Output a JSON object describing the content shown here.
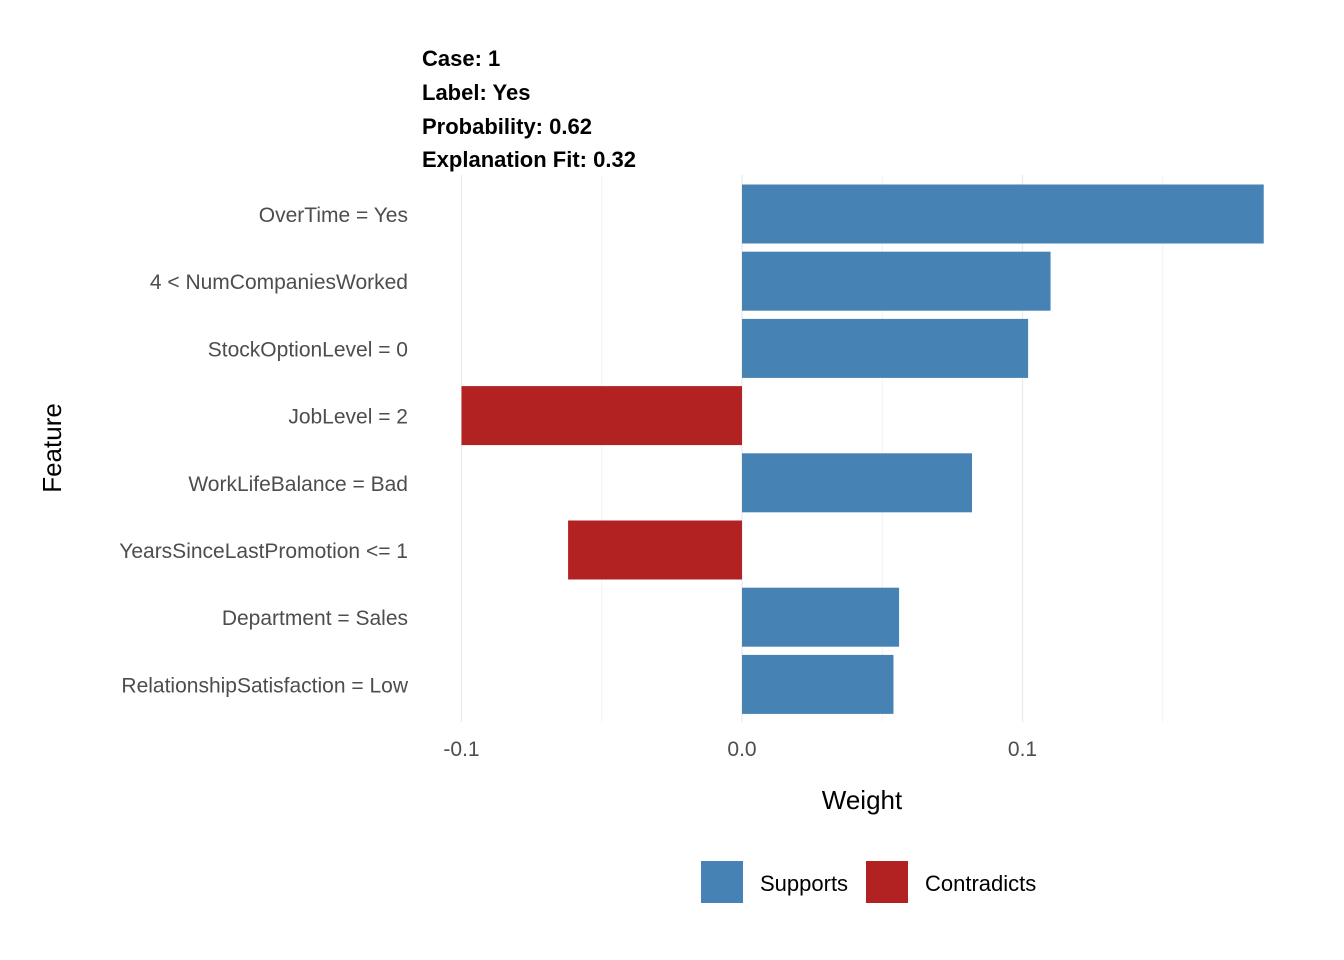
{
  "chart_data": {
    "type": "bar",
    "orientation": "horizontal",
    "title_lines": [
      "Case: 1",
      "Label: Yes",
      "Probability: 0.62",
      "Explanation Fit: 0.32"
    ],
    "xlabel": "Weight",
    "ylabel": "Feature",
    "xlim": [
      -0.1,
      0.186
    ],
    "xticks": [
      {
        "value": -0.1,
        "label": "-0.1"
      },
      {
        "value": 0.0,
        "label": "0.0"
      },
      {
        "value": 0.1,
        "label": "0.1"
      }
    ],
    "minor_xticks": [
      -0.05,
      0.05,
      0.15
    ],
    "grid": true,
    "legend": {
      "placement": "bottom",
      "items": [
        {
          "label": "Supports",
          "color": "#4682B4"
        },
        {
          "label": "Contradicts",
          "color": "#B22222"
        }
      ]
    },
    "bars": [
      {
        "feature": "OverTime = Yes",
        "weight": 0.186,
        "type": "Supports"
      },
      {
        "feature": "4 < NumCompaniesWorked",
        "weight": 0.11,
        "type": "Supports"
      },
      {
        "feature": "StockOptionLevel = 0",
        "weight": 0.102,
        "type": "Supports"
      },
      {
        "feature": "JobLevel = 2",
        "weight": -0.1,
        "type": "Contradicts"
      },
      {
        "feature": "WorkLifeBalance = Bad",
        "weight": 0.082,
        "type": "Supports"
      },
      {
        "feature": "YearsSinceLastPromotion <= 1",
        "weight": -0.062,
        "type": "Contradicts"
      },
      {
        "feature": "Department = Sales",
        "weight": 0.056,
        "type": "Supports"
      },
      {
        "feature": "RelationshipSatisfaction = Low",
        "weight": 0.054,
        "type": "Supports"
      }
    ]
  }
}
